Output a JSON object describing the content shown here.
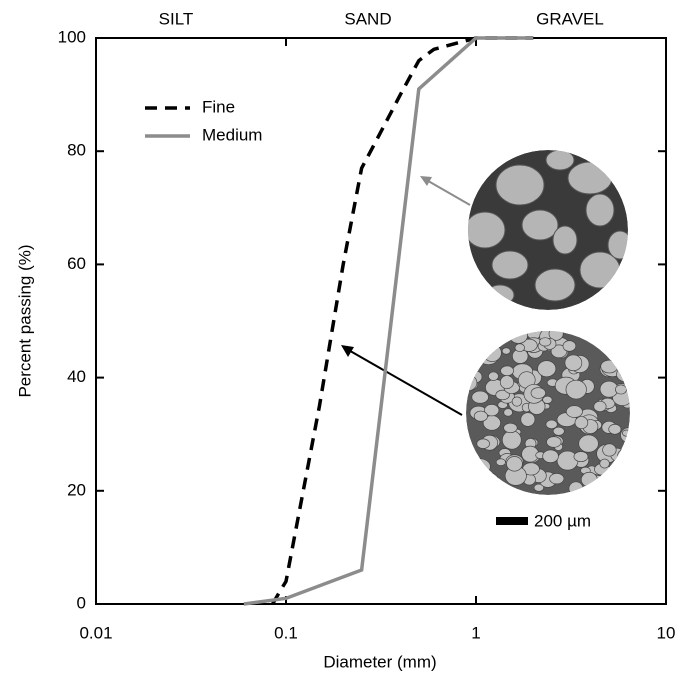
{
  "chart_data": {
    "type": "line",
    "zone_labels": [
      "SILT",
      "SAND",
      "GRAVEL"
    ],
    "x_label": "Diameter (mm)",
    "y_label": "Percent passing (%)",
    "log_x": true,
    "xlim": [
      0.01,
      10
    ],
    "xticks": [
      0.01,
      0.1,
      1,
      10
    ],
    "ylim": [
      0,
      100
    ],
    "yticks": [
      0,
      20,
      40,
      60,
      80,
      100
    ],
    "series": [
      {
        "name": "Fine",
        "color": "#000000",
        "dashed": true,
        "x": [
          0.085,
          0.092,
          0.1,
          0.15,
          0.2,
          0.25,
          0.3,
          0.4,
          0.5,
          0.6,
          1,
          2
        ],
        "values": [
          0,
          2,
          4,
          35,
          60,
          77,
          82,
          90,
          96,
          98,
          100,
          100
        ]
      },
      {
        "name": "Medium",
        "color": "#8c8c8c",
        "dashed": false,
        "x": [
          0.06,
          0.1,
          0.25,
          0.5,
          1,
          2
        ],
        "values": [
          0,
          1,
          6,
          91,
          100,
          100
        ]
      }
    ],
    "scale_bar_label": "200 µm"
  }
}
